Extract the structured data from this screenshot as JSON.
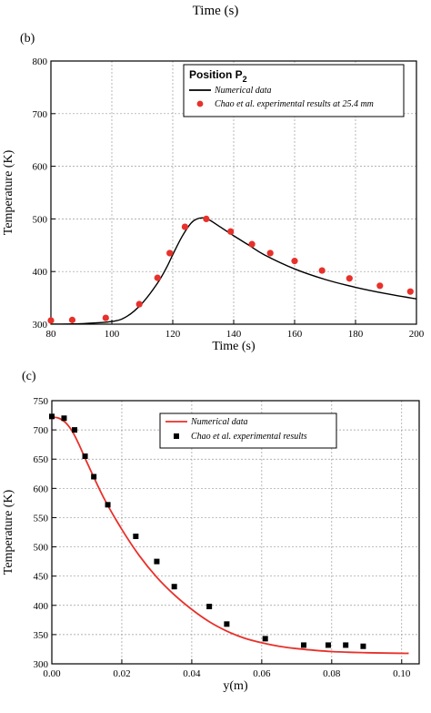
{
  "header": {
    "cropped_xlabel": "Time (s)"
  },
  "chart_data": [
    {
      "panel_label": "(b)",
      "type": "line",
      "xlabel": "Time (s)",
      "ylabel": "Temperature (K)",
      "xlim": [
        80,
        200
      ],
      "ylim": [
        300,
        800
      ],
      "xticks": [
        80,
        100,
        120,
        140,
        160,
        180,
        200
      ],
      "yticks": [
        300,
        400,
        500,
        600,
        700,
        800
      ],
      "grid": true,
      "legend_title": "Position P",
      "legend_title_subscript": "2",
      "legend_placement": "top-right",
      "series": [
        {
          "name": "Numerical data",
          "kind": "line",
          "color": "#000000",
          "x": [
            80,
            90,
            100,
            105,
            110,
            115,
            118,
            120,
            123,
            126,
            128,
            130,
            132,
            135,
            140,
            145,
            150,
            160,
            170,
            180,
            190,
            200
          ],
          "y": [
            300,
            301,
            305,
            315,
            340,
            378,
            408,
            432,
            466,
            492,
            500,
            502,
            498,
            487,
            468,
            450,
            432,
            405,
            385,
            370,
            358,
            348
          ]
        },
        {
          "name": "Chao et al. experimental results at 25.4 mm",
          "kind": "scatter",
          "marker": "circle",
          "color": "#e8312a",
          "x": [
            80,
            87,
            98,
            109,
            115,
            119,
            124,
            131,
            139,
            146,
            152,
            160,
            169,
            178,
            188,
            198
          ],
          "y": [
            307,
            308,
            312,
            338,
            388,
            435,
            485,
            500,
            476,
            452,
            435,
            420,
            402,
            387,
            373,
            362
          ]
        }
      ]
    },
    {
      "panel_label": "(c)",
      "type": "line",
      "xlabel": "y(m)",
      "ylabel": "Temperature (K)",
      "xlim": [
        0,
        0.105
      ],
      "ylim": [
        300,
        750
      ],
      "xticks": [
        "0.00",
        "0.02",
        "0.04",
        "0.06",
        "0.08",
        "0.10"
      ],
      "yticks": [
        300,
        350,
        400,
        450,
        500,
        550,
        600,
        650,
        700,
        750
      ],
      "grid": true,
      "legend_placement": "top-right",
      "series": [
        {
          "name": "Numerical data",
          "kind": "line",
          "color": "#e8312a",
          "x": [
            0,
            0.002,
            0.004,
            0.006,
            0.008,
            0.01,
            0.015,
            0.02,
            0.025,
            0.03,
            0.035,
            0.04,
            0.045,
            0.05,
            0.055,
            0.06,
            0.065,
            0.07,
            0.08,
            0.09,
            0.1,
            0.102
          ],
          "y": [
            722,
            720,
            712,
            696,
            672,
            645,
            582,
            530,
            485,
            448,
            418,
            393,
            372,
            356,
            344,
            336,
            330,
            326,
            321,
            319,
            318,
            318
          ]
        },
        {
          "name": "Chao et al. experimental results",
          "kind": "scatter",
          "marker": "square",
          "color": "#000000",
          "x": [
            0.0,
            0.0035,
            0.0065,
            0.0095,
            0.012,
            0.016,
            0.024,
            0.03,
            0.035,
            0.045,
            0.05,
            0.061,
            0.072,
            0.079,
            0.084,
            0.089
          ],
          "y": [
            723,
            720,
            700,
            655,
            620,
            572,
            518,
            475,
            432,
            398,
            368,
            343,
            332,
            332,
            332,
            330
          ]
        }
      ]
    }
  ]
}
